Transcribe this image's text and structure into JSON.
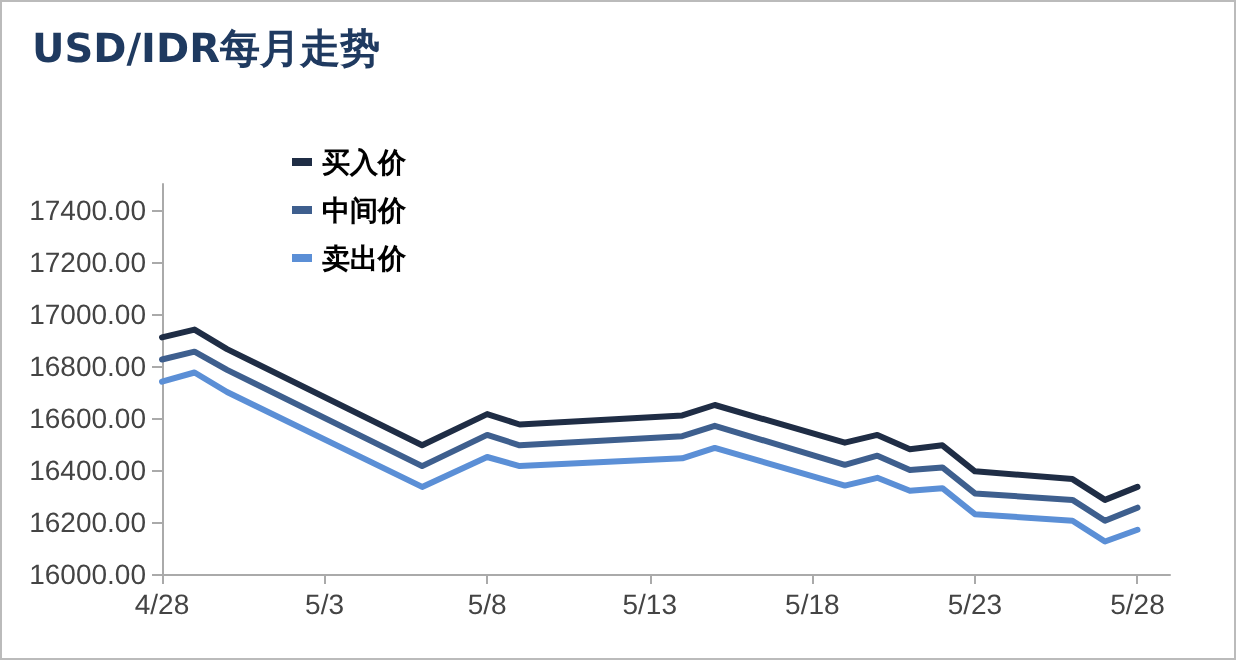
{
  "chart_data": {
    "type": "line",
    "title": "USD/IDR每月走势",
    "x": [
      "--04-28",
      "--04-29",
      "--04-30",
      "--05-06",
      "--05-08",
      "--05-09",
      "--05-14",
      "--05-15",
      "--05-19",
      "--05-20",
      "--05-21",
      "--05-22",
      "--05-23",
      "--05-26",
      "--05-27",
      "--05-28"
    ],
    "series": [
      {
        "name": "买入价",
        "color": "#1f2d45",
        "values": [
          16910,
          16940,
          16865,
          16495,
          16615,
          16575,
          16610,
          16650,
          16505,
          16535,
          16480,
          16495,
          16395,
          16365,
          16285,
          16335
        ]
      },
      {
        "name": "中间价",
        "color": "#3e5f8e",
        "values": [
          16825,
          16855,
          16785,
          16415,
          16535,
          16495,
          16530,
          16570,
          16420,
          16455,
          16400,
          16410,
          16310,
          16285,
          16205,
          16255
        ]
      },
      {
        "name": "卖出价",
        "color": "#5b8fd6",
        "values": [
          16740,
          16775,
          16700,
          16335,
          16450,
          16415,
          16445,
          16485,
          16340,
          16370,
          16320,
          16330,
          16230,
          16205,
          16125,
          16170
        ]
      }
    ],
    "xlim": [
      "--04-28",
      "--05-29"
    ],
    "xticks": [
      {
        "value": "--04-28",
        "label": "4/28"
      },
      {
        "value": "--05-03",
        "label": "5/3"
      },
      {
        "value": "--05-08",
        "label": "5/8"
      },
      {
        "value": "--05-13",
        "label": "5/13"
      },
      {
        "value": "--05-18",
        "label": "5/18"
      },
      {
        "value": "--05-23",
        "label": "5/23"
      },
      {
        "value": "--05-28",
        "label": "5/28"
      }
    ],
    "ylim": [
      16000,
      17500
    ],
    "yticks": [
      {
        "value": 16000,
        "label": "16000.00"
      },
      {
        "value": 16200,
        "label": "16200.00"
      },
      {
        "value": 16400,
        "label": "16400.00"
      },
      {
        "value": 16600,
        "label": "16600.00"
      },
      {
        "value": 16800,
        "label": "16800.00"
      },
      {
        "value": 17000,
        "label": "17000.00"
      },
      {
        "value": 17200,
        "label": "17200.00"
      },
      {
        "value": 17400,
        "label": "17400.00"
      }
    ],
    "grid": false,
    "legend": "top left",
    "marker": "none",
    "line_style": "solid"
  }
}
